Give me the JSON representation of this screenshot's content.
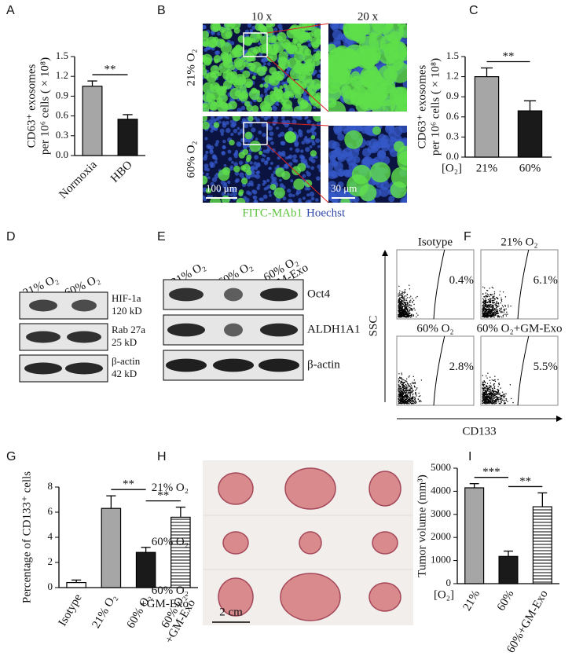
{
  "chart_data": [
    {
      "type": "bar",
      "panel": "A",
      "ylabel": [
        "CD63⁺ exosomes",
        "per 10⁶ cells ( × 10⁸)"
      ],
      "categories": [
        "Normoxia",
        "HBO"
      ],
      "values": [
        1.05,
        0.55
      ],
      "errors": [
        0.08,
        0.07
      ],
      "colors": [
        "#a6a6a6",
        "#1a1a1a"
      ],
      "hatch": [
        false,
        false
      ],
      "ylim": [
        0,
        1.5
      ],
      "yticks": [
        {
          "value": 0,
          "label": "0.0"
        },
        0.3,
        0.6,
        0.9,
        1.2,
        1.5
      ],
      "significance": [
        {
          "label": "**",
          "between": [
            "Normoxia",
            "HBO"
          ]
        }
      ]
    },
    {
      "type": "bar",
      "panel": "C",
      "ylabel": [
        "CD63⁺ exosomes",
        "per 10⁶ cells ( × 10⁸)"
      ],
      "x_prefix": "[O₂]",
      "categories": [
        "21%",
        "60%"
      ],
      "values": [
        1.2,
        0.69
      ],
      "errors": [
        0.13,
        0.15
      ],
      "colors": [
        "#a6a6a6",
        "#1a1a1a"
      ],
      "hatch": [
        false,
        false
      ],
      "ylim": [
        0,
        1.5
      ],
      "yticks": [
        {
          "value": 0,
          "label": "0.0"
        },
        0.3,
        0.6,
        0.9,
        1.2,
        1.5
      ],
      "significance": [
        {
          "label": "**",
          "between": [
            "21%",
            "60%"
          ]
        }
      ]
    },
    {
      "type": "bar",
      "panel": "G",
      "ylabel": [
        "Percentage of CD133⁺ cells"
      ],
      "categories": [
        "Isotype",
        "21% O₂",
        "60% O₂",
        [
          "60% O₂",
          "+GM-Exo"
        ]
      ],
      "values": [
        0.4,
        6.3,
        2.8,
        5.6
      ],
      "errors": [
        0.2,
        1.0,
        0.4,
        0.8
      ],
      "colors": [
        "#ffffff",
        "#a6a6a6",
        "#1a1a1a",
        "#ffffff"
      ],
      "hatch": [
        false,
        false,
        false,
        true
      ],
      "ylim": [
        0,
        8
      ],
      "yticks": [
        0,
        2,
        4,
        6,
        8
      ],
      "significance": [
        {
          "label": "**",
          "between": [
            "21% O₂",
            "60% O₂"
          ]
        },
        {
          "label": "**",
          "between": [
            "60% O₂",
            [
              "60% O₂",
              "+GM-Exo"
            ]
          ]
        }
      ]
    },
    {
      "type": "bar",
      "panel": "I",
      "ylabel": [
        "Tumor volume (mm³)"
      ],
      "x_prefix": "[O₂]",
      "categories": [
        "21%",
        "60%",
        "60%+GM-Exo"
      ],
      "values": [
        4150,
        1180,
        3330
      ],
      "errors": [
        180,
        230,
        600
      ],
      "colors": [
        "#a6a6a6",
        "#1a1a1a",
        "#ffffff"
      ],
      "hatch": [
        false,
        false,
        true
      ],
      "ylim": [
        0,
        5000
      ],
      "yticks": [
        0,
        1000,
        2000,
        3000,
        4000,
        5000
      ],
      "significance": [
        {
          "label": "***",
          "between": [
            "21%",
            "60%"
          ]
        },
        {
          "label": "**",
          "between": [
            "60%",
            "60%+GM-Exo"
          ]
        }
      ]
    }
  ],
  "panels": {
    "B": {
      "label": "B",
      "magnifications": [
        "10 x",
        "20 x"
      ],
      "rows": [
        "21% O₂",
        "60% O₂"
      ],
      "scale_bars": [
        "100 μm",
        "30 μm"
      ],
      "stains": [
        "FITC-MAb1",
        "Hoechst"
      ]
    },
    "D": {
      "label": "D",
      "lanes": [
        "21% O₂",
        "60% O₂"
      ],
      "bands": [
        {
          "protein": "HIF-1a",
          "size": "120 kD"
        },
        {
          "protein": "Rab 27a",
          "size": "25 kD"
        },
        {
          "protein": "β-actin",
          "size": "42 kD"
        }
      ]
    },
    "E": {
      "label": "E",
      "lanes": [
        "21% O₂",
        "60% O₂",
        [
          "60% O₂",
          "+GM-Exo"
        ]
      ],
      "bands": [
        "Oct4",
        "ALDH1A1",
        "β-actin"
      ]
    },
    "F": {
      "label": "F",
      "plots": [
        {
          "title": "Isotype",
          "gate": "0.4%"
        },
        {
          "title": "21% O₂",
          "gate": "6.1%"
        },
        {
          "title": "60% O₂",
          "gate": "2.8%"
        },
        {
          "title": "60% O₂+GM-Exo",
          "gate": "5.5%"
        }
      ],
      "y_axis": "SSC",
      "x_axis": "CD133"
    },
    "H": {
      "label": "H",
      "rows": [
        [
          "21% O₂"
        ],
        [
          "60% O₂"
        ],
        [
          "60% O₂",
          "+GM-Exo"
        ]
      ],
      "scale_bar": "2 cm"
    }
  }
}
